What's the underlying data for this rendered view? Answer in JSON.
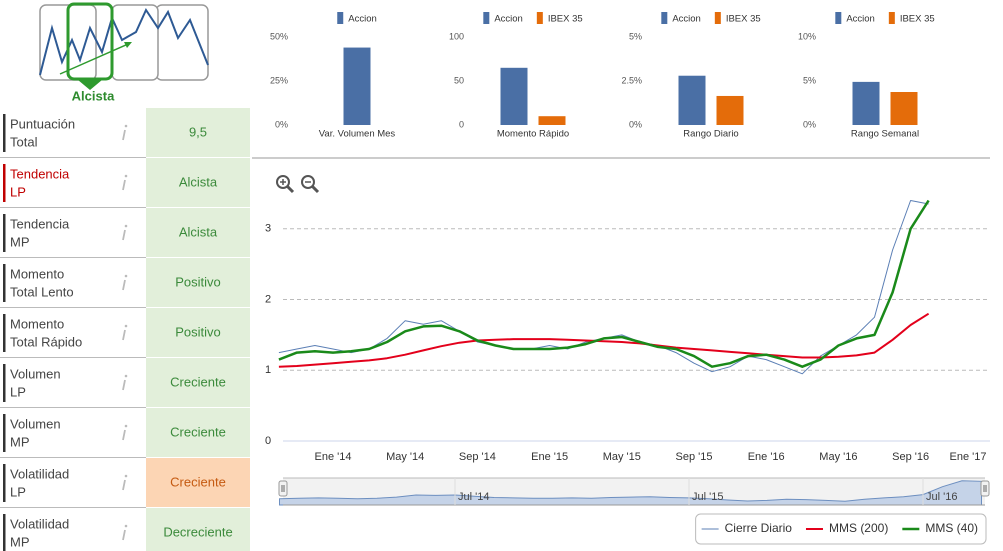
{
  "signal": {
    "label": "Alcista"
  },
  "indicators": {
    "rows": [
      {
        "label": [
          "Puntuación",
          "Total"
        ],
        "value": "9,5",
        "accent": "#333333",
        "fill": "#e2efda",
        "text_color": "#3b8a3b"
      },
      {
        "label": [
          "Tendencia",
          "LP"
        ],
        "value": "Alcista",
        "accent": "#c00000",
        "fill": "#e2efda",
        "text_color": "#3b8a3b"
      },
      {
        "label": [
          "Tendencia",
          "MP"
        ],
        "value": "Alcista",
        "accent": "#333333",
        "fill": "#e2efda",
        "text_color": "#3b8a3b"
      },
      {
        "label": [
          "Momento",
          "Total Lento"
        ],
        "value": "Positivo",
        "accent": "#333333",
        "fill": "#e2efda",
        "text_color": "#3b8a3b"
      },
      {
        "label": [
          "Momento",
          "Total Rápido"
        ],
        "value": "Positivo",
        "accent": "#333333",
        "fill": "#e2efda",
        "text_color": "#3b8a3b"
      },
      {
        "label": [
          "Volumen",
          "LP"
        ],
        "value": "Creciente",
        "accent": "#333333",
        "fill": "#e2efda",
        "text_color": "#3b8a3b"
      },
      {
        "label": [
          "Volumen",
          "MP"
        ],
        "value": "Creciente",
        "accent": "#333333",
        "fill": "#e2efda",
        "text_color": "#3b8a3b"
      },
      {
        "label": [
          "Volatilidad",
          "LP"
        ],
        "value": "Creciente",
        "accent": "#333333",
        "fill": "#fcd5b4",
        "text_color": "#c55a11"
      },
      {
        "label": [
          "Volatilidad",
          "MP"
        ],
        "value": "Decreciente",
        "accent": "#333333",
        "fill": "#e2efda",
        "text_color": "#3b8a3b"
      }
    ]
  },
  "chart_data": [
    {
      "type": "bar",
      "categories": [
        "Var. Volumen Mes"
      ],
      "series": [
        {
          "name": "Accion",
          "color": "#4a6fa5",
          "values": [
            44
          ]
        }
      ],
      "ylim": [
        0,
        50
      ],
      "yticks": [
        {
          "value": 0,
          "label": "0%"
        },
        {
          "value": 25,
          "label": "25%"
        },
        {
          "value": 50,
          "label": "50%"
        }
      ]
    },
    {
      "type": "bar",
      "categories": [
        "Momento Rápido"
      ],
      "series": [
        {
          "name": "Accion",
          "color": "#4a6fa5",
          "values": [
            65
          ]
        },
        {
          "name": "IBEX 35",
          "color": "#e46c0a",
          "values": [
            10
          ]
        }
      ],
      "ylim": [
        0,
        100
      ],
      "yticks": [
        0,
        50,
        100
      ]
    },
    {
      "type": "bar",
      "categories": [
        "Rango Diario"
      ],
      "series": [
        {
          "name": "Accion",
          "color": "#4a6fa5",
          "values": [
            2.8
          ]
        },
        {
          "name": "IBEX 35",
          "color": "#e46c0a",
          "values": [
            1.65
          ]
        }
      ],
      "ylim": [
        0,
        5
      ],
      "yticks": [
        {
          "value": 0,
          "label": "0%"
        },
        {
          "value": 2.5,
          "label": "2.5%"
        },
        {
          "value": 5,
          "label": "5%"
        }
      ]
    },
    {
      "type": "bar",
      "categories": [
        "Rango Semanal"
      ],
      "series": [
        {
          "name": "Accion",
          "color": "#4a6fa5",
          "values": [
            4.9
          ]
        },
        {
          "name": "IBEX 35",
          "color": "#e46c0a",
          "values": [
            3.75
          ]
        }
      ],
      "ylim": [
        0,
        10
      ],
      "yticks": [
        {
          "value": 0,
          "label": "0%"
        },
        {
          "value": 5,
          "label": "5%"
        },
        {
          "value": 10,
          "label": "10%"
        }
      ]
    },
    {
      "type": "line",
      "categories": [
        null,
        null,
        null,
        "Ene '14",
        null,
        null,
        null,
        "May '14",
        null,
        null,
        null,
        "Sep '14",
        null,
        null,
        null,
        "Ene '15",
        null,
        null,
        null,
        "May '15",
        null,
        null,
        null,
        "Sep '15",
        null,
        null,
        null,
        "Ene '16",
        null,
        null,
        null,
        "May '16",
        null,
        null,
        null,
        "Sep '16",
        null,
        null,
        null,
        "Ene '17"
      ],
      "series": [
        {
          "name": "Cierre Diario",
          "color": "#5b7fb5",
          "values": [
            1.25,
            1.3,
            1.35,
            1.3,
            1.25,
            1.3,
            1.45,
            1.7,
            1.65,
            1.7,
            1.55,
            1.4,
            1.35,
            1.3,
            1.3,
            1.35,
            1.3,
            1.4,
            1.45,
            1.5,
            1.4,
            1.35,
            1.25,
            1.1,
            0.98,
            1.05,
            1.2,
            1.15,
            1.05,
            0.95,
            1.2,
            1.35,
            1.5,
            1.75,
            2.7,
            3.4,
            3.35,
            null,
            null,
            null
          ]
        },
        {
          "name": "MMS (200)",
          "color": "#e3001b",
          "values": [
            1.05,
            1.06,
            1.08,
            1.1,
            1.12,
            1.14,
            1.17,
            1.22,
            1.28,
            1.34,
            1.39,
            1.42,
            1.43,
            1.44,
            1.44,
            1.44,
            1.43,
            1.42,
            1.41,
            1.4,
            1.38,
            1.35,
            1.32,
            1.3,
            1.28,
            1.26,
            1.24,
            1.22,
            1.2,
            1.18,
            1.18,
            1.19,
            1.21,
            1.25,
            1.43,
            1.64,
            1.8,
            null,
            null,
            null
          ]
        },
        {
          "name": "MMS (40)",
          "color": "#1a8a1a",
          "values": [
            1.15,
            1.25,
            1.27,
            1.25,
            1.27,
            1.3,
            1.4,
            1.55,
            1.62,
            1.63,
            1.55,
            1.42,
            1.35,
            1.3,
            1.3,
            1.3,
            1.32,
            1.37,
            1.45,
            1.47,
            1.4,
            1.33,
            1.3,
            1.2,
            1.05,
            1.1,
            1.2,
            1.22,
            1.15,
            1.05,
            1.15,
            1.35,
            1.45,
            1.5,
            2.1,
            3.0,
            3.4,
            null,
            null,
            null
          ]
        }
      ],
      "ylim": [
        0,
        3.76
      ],
      "yticks": [
        0,
        1,
        2,
        3
      ],
      "grid": true,
      "legend": "bottom-right",
      "navigator": {
        "labels": [
          "Jul '14",
          "Jul '15",
          "Jul '16"
        ]
      }
    }
  ]
}
